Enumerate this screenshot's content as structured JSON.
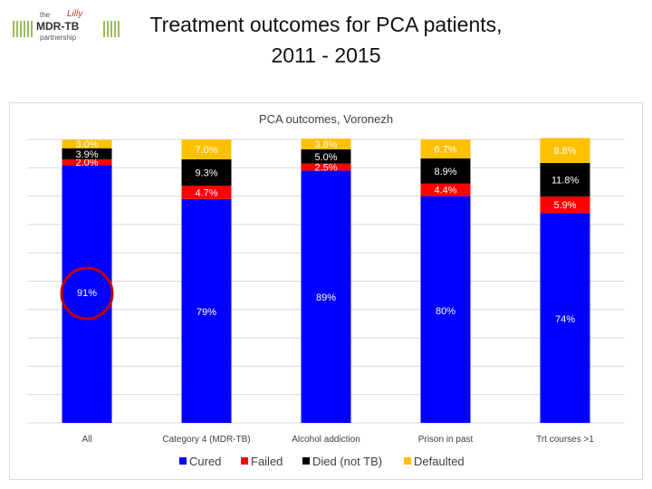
{
  "logo": {
    "the": "the",
    "brand": "Lilly",
    "main": "MDR-TB",
    "sub": "partnership"
  },
  "slide_title_line1": "Treatment outcomes for PCA patients,",
  "slide_title_line2": "2011 - 2015",
  "colors": {
    "cured": "#0000ff",
    "failed": "#ff0000",
    "died": "#000000",
    "defaulted": "#ffc000",
    "grid": "#d9d9d9"
  },
  "chart_data": {
    "type": "bar",
    "stacked": true,
    "title": "PCA outcomes, Voronezh",
    "categories": [
      "All",
      "Category 4 (MDR-TB)",
      "Alcohol addiction",
      "Prison in past",
      "Trt courses >1"
    ],
    "series": [
      {
        "name": "Cured",
        "values": [
          91,
          79,
          89,
          80,
          74
        ],
        "labels": [
          "91%",
          "79%",
          "89%",
          "80%",
          "74%"
        ]
      },
      {
        "name": "Failed",
        "values": [
          2.0,
          4.7,
          2.5,
          4.4,
          5.9
        ],
        "labels": [
          "2.0%",
          "4.7%",
          "2.5%",
          "4.4%",
          "5.9%"
        ]
      },
      {
        "name": "Died (not TB)",
        "values": [
          3.9,
          9.3,
          5.0,
          8.9,
          11.8
        ],
        "labels": [
          "3.9%",
          "9.3%",
          "5.0%",
          "8.9%",
          "11.8%"
        ]
      },
      {
        "name": "Defaulted",
        "values": [
          3.0,
          7.0,
          3.8,
          6.7,
          8.8
        ],
        "labels": [
          "3.0%",
          "7.0%",
          "3.8%",
          "6.7%",
          "8.8%"
        ]
      }
    ],
    "ylim": [
      0,
      100
    ],
    "grid": true,
    "legend_position": "bottom",
    "annotation": "red circle around 91%"
  }
}
